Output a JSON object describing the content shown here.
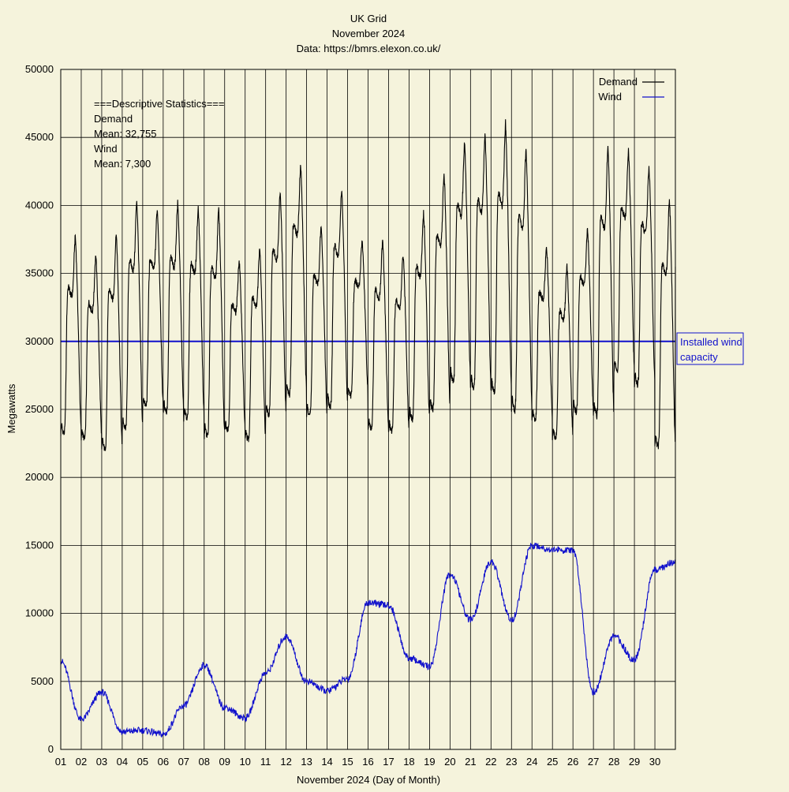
{
  "chart_data": {
    "type": "line",
    "title": "UK Grid",
    "subtitle": "November 2024",
    "source": "Data: https://bmrs.elexon.co.uk/",
    "xlabel": "November 2024 (Day of Month)",
    "ylabel": "Megawatts",
    "xlim": [
      1,
      31
    ],
    "ylim": [
      0,
      50000
    ],
    "x_ticks": [
      "01",
      "02",
      "03",
      "04",
      "05",
      "06",
      "07",
      "08",
      "09",
      "10",
      "11",
      "12",
      "13",
      "14",
      "15",
      "16",
      "17",
      "18",
      "19",
      "20",
      "21",
      "22",
      "23",
      "24",
      "25",
      "26",
      "27",
      "28",
      "29",
      "30"
    ],
    "y_ticks": [
      0,
      5000,
      10000,
      15000,
      20000,
      25000,
      30000,
      35000,
      40000,
      45000,
      50000
    ],
    "grid": true,
    "legend_position": "top-right",
    "colors": {
      "demand": "#000000",
      "wind": "#1010cc",
      "capacity": "#1010cc",
      "background": "#f5f3dc"
    },
    "stats": {
      "heading": "===Descriptive Statistics===",
      "demand_label": "Demand",
      "demand_mean": "Mean:  32,755",
      "wind_label": "Wind",
      "wind_mean": "Mean:  7,300"
    },
    "reference_line": {
      "value": 30000,
      "label_line1": "Installed wind",
      "label_line2": "capacity"
    },
    "series": [
      {
        "name": "Demand",
        "key": "demand",
        "daily_min": [
          23200,
          22800,
          22000,
          23500,
          25200,
          24800,
          24300,
          23000,
          23500,
          22700,
          24500,
          26000,
          24600,
          25200,
          26000,
          23500,
          23400,
          24200,
          25000,
          27000,
          26500,
          26200,
          24900,
          24200,
          22900,
          24800,
          24500,
          27800,
          26800,
          22200
        ],
        "daily_max": [
          37800,
          36400,
          38000,
          40400,
          39800,
          40200,
          39800,
          39800,
          36000,
          37000,
          41100,
          43100,
          38500,
          41200,
          37500,
          37400,
          36400,
          39500,
          42400,
          44700,
          45300,
          46100,
          44200,
          37000,
          35500,
          38300,
          44400,
          44100,
          42900,
          40500
        ],
        "end_value": 35500
      },
      {
        "name": "Wind",
        "key": "wind",
        "daily_mean": [
          6500,
          2200,
          4200,
          1300,
          1400,
          1100,
          3200,
          6200,
          3100,
          2300,
          5600,
          8300,
          5000,
          4300,
          5200,
          10800,
          10600,
          6700,
          6100,
          12900,
          9500,
          13800,
          9500,
          15000,
          14700,
          14600,
          4200,
          8300,
          6600,
          13200
        ],
        "end_value": 13800
      }
    ]
  }
}
